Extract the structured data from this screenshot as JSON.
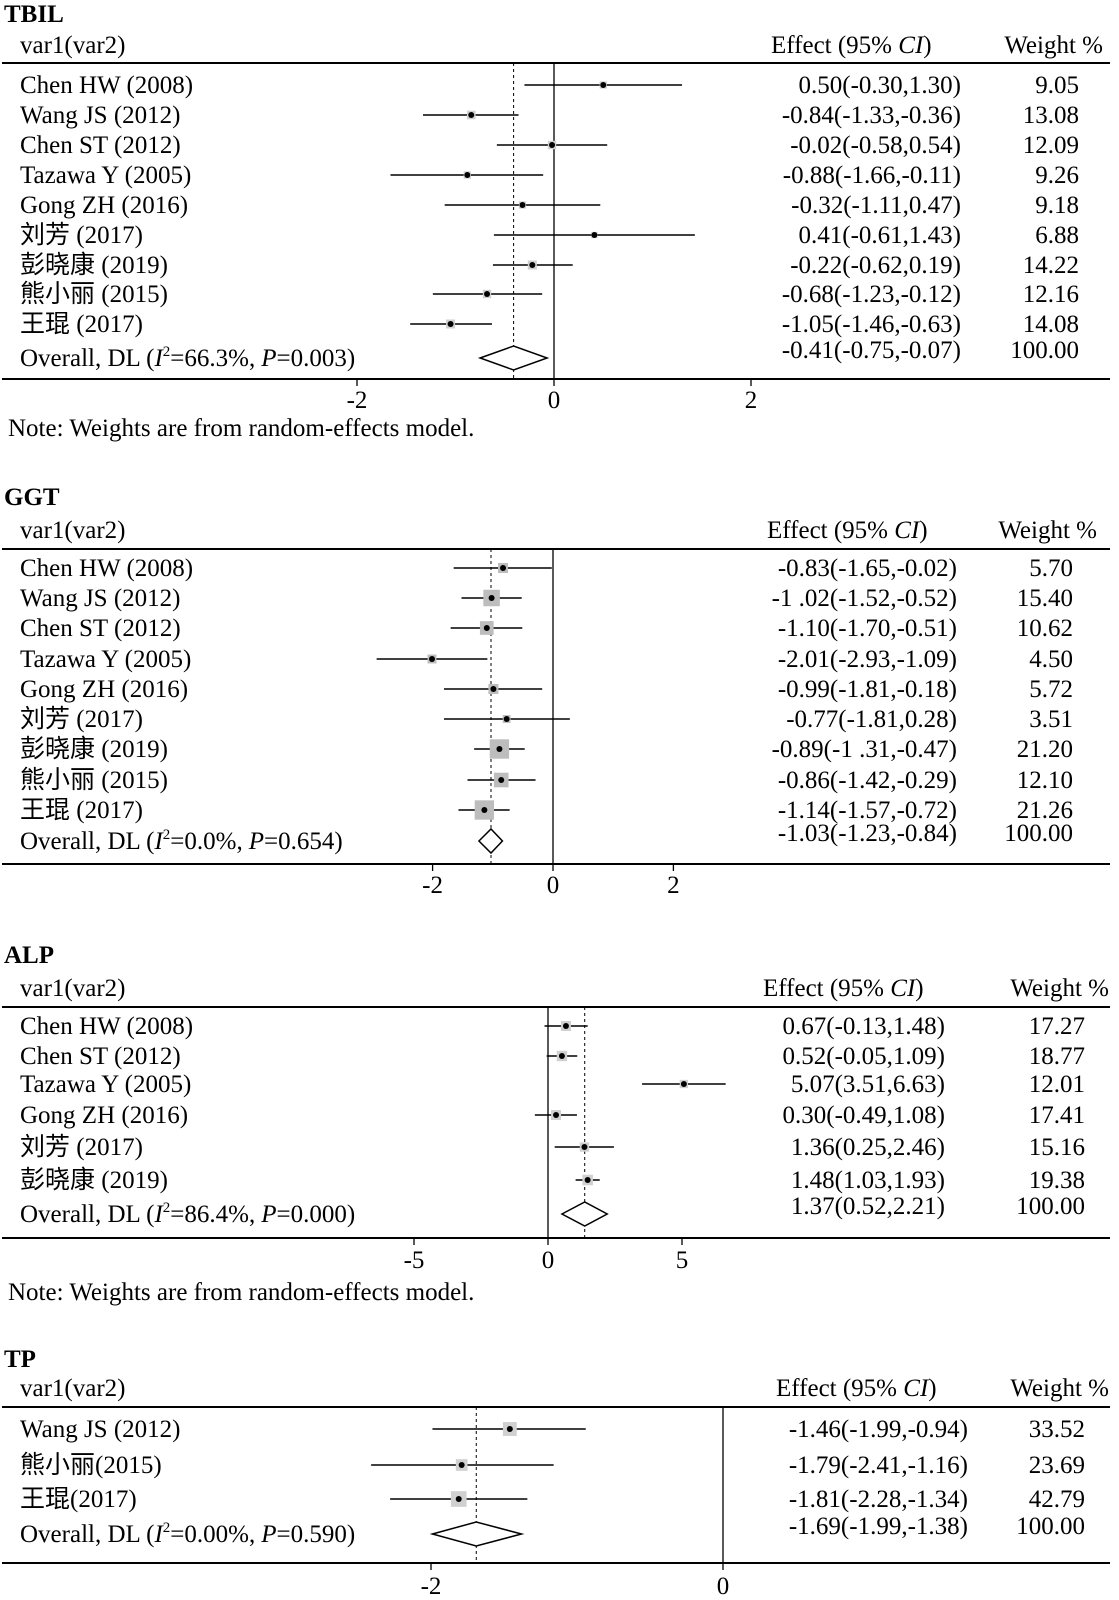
{
  "chart_data": [
    {
      "type": "forest",
      "title": "TBIL",
      "col_study": "var1(var2)",
      "col_effect": "Effect (95% CI)",
      "col_weight": "Weight %",
      "studies": [
        {
          "label": "Chen HW (2008)",
          "effect": 0.5,
          "lo": -0.3,
          "hi": 1.3,
          "effect_text": "0.50(-0.30,1.30)",
          "weight": "9.05"
        },
        {
          "label": "Wang JS (2012)",
          "effect": -0.84,
          "lo": -1.33,
          "hi": -0.36,
          "effect_text": "-0.84(-1.33,-0.36)",
          "weight": "13.08"
        },
        {
          "label": "Chen ST (2012)",
          "effect": -0.02,
          "lo": -0.58,
          "hi": 0.54,
          "effect_text": "-0.02(-0.58,0.54)",
          "weight": "12.09"
        },
        {
          "label": "Tazawa Y (2005)",
          "effect": -0.88,
          "lo": -1.66,
          "hi": -0.11,
          "effect_text": "-0.88(-1.66,-0.11)",
          "weight": "9.26"
        },
        {
          "label": "Gong ZH (2016)",
          "effect": -0.32,
          "lo": -1.11,
          "hi": 0.47,
          "effect_text": "-0.32(-1.11,0.47)",
          "weight": "9.18"
        },
        {
          "label": "刘芳 (2017)",
          "effect": 0.41,
          "lo": -0.61,
          "hi": 1.43,
          "effect_text": "0.41(-0.61,1.43)",
          "weight": "6.88"
        },
        {
          "label": "彭晓康 (2019)",
          "effect": -0.22,
          "lo": -0.62,
          "hi": 0.19,
          "effect_text": "-0.22(-0.62,0.19)",
          "weight": "14.22"
        },
        {
          "label": "熊小丽 (2015)",
          "effect": -0.68,
          "lo": -1.23,
          "hi": -0.12,
          "effect_text": "-0.68(-1.23,-0.12)",
          "weight": "12.16"
        },
        {
          "label": "王琨 (2017)",
          "effect": -1.05,
          "lo": -1.46,
          "hi": -0.63,
          "effect_text": "-1.05(-1.46,-0.63)",
          "weight": "14.08"
        }
      ],
      "overall": {
        "prefix": "Overall, DL (",
        "i2_symbol": "I",
        "i2_sup": "2",
        "i2_value": "=66.3%,",
        "p_symbol": "P",
        "p_value": "=0.003)",
        "effect": -0.41,
        "lo": -0.75,
        "hi": -0.07,
        "effect_text": "-0.41(-0.75,-0.07)",
        "weight": "100.00"
      },
      "x_ticks": [
        -2,
        0,
        2
      ],
      "note": "Note: Weights are from random-effects model."
    },
    {
      "type": "forest",
      "title": "GGT",
      "col_study": "var1(var2)",
      "col_effect": "Effect (95% CI)",
      "col_weight": "Weight %",
      "studies": [
        {
          "label": "Chen HW (2008)",
          "effect": -0.83,
          "lo": -1.65,
          "hi": -0.02,
          "effect_text": "-0.83(-1.65,-0.02)",
          "weight": "5.70"
        },
        {
          "label": "Wang JS (2012)",
          "effect": -1.02,
          "lo": -1.52,
          "hi": -0.52,
          "effect_text": "-1 .02(-1.52,-0.52)",
          "weight": "15.40"
        },
        {
          "label": "Chen ST (2012)",
          "effect": -1.1,
          "lo": -1.7,
          "hi": -0.51,
          "effect_text": "-1.10(-1.70,-0.51)",
          "weight": "10.62"
        },
        {
          "label": "Tazawa Y (2005)",
          "effect": -2.01,
          "lo": -2.93,
          "hi": -1.09,
          "effect_text": "-2.01(-2.93,-1.09)",
          "weight": "4.50"
        },
        {
          "label": "Gong ZH (2016)",
          "effect": -0.99,
          "lo": -1.81,
          "hi": -0.18,
          "effect_text": "-0.99(-1.81,-0.18)",
          "weight": "5.72"
        },
        {
          "label": "刘芳 (2017)",
          "effect": -0.77,
          "lo": -1.81,
          "hi": 0.28,
          "effect_text": "-0.77(-1.81,0.28)",
          "weight": "3.51"
        },
        {
          "label": "彭晓康 (2019)",
          "effect": -0.89,
          "lo": -1.31,
          "hi": -0.47,
          "effect_text": "-0.89(-1 .31,-0.47)",
          "weight": "21.20"
        },
        {
          "label": "熊小丽 (2015)",
          "effect": -0.86,
          "lo": -1.42,
          "hi": -0.29,
          "effect_text": "-0.86(-1.42,-0.29)",
          "weight": "12.10"
        },
        {
          "label": "王琨 (2017)",
          "effect": -1.14,
          "lo": -1.57,
          "hi": -0.72,
          "effect_text": "-1.14(-1.57,-0.72)",
          "weight": "21.26"
        }
      ],
      "overall": {
        "prefix": "Overall, DL (",
        "i2_symbol": "I",
        "i2_sup": "2",
        "i2_value": "=0.0%,",
        "p_symbol": "P",
        "p_value": "=0.654)",
        "effect": -1.03,
        "lo": -1.23,
        "hi": -0.84,
        "effect_text": "-1.03(-1.23,-0.84)",
        "weight": "100.00"
      },
      "x_ticks": [
        -2,
        0,
        2
      ],
      "note": ""
    },
    {
      "type": "forest",
      "title": "ALP",
      "col_study": "var1(var2)",
      "col_effect": "Effect (95% CI)",
      "col_weight": "Weight %",
      "studies": [
        {
          "label": "Chen HW (2008)",
          "effect": 0.67,
          "lo": -0.13,
          "hi": 1.48,
          "effect_text": "0.67(-0.13,1.48)",
          "weight": "17.27"
        },
        {
          "label": "Chen ST (2012)",
          "effect": 0.52,
          "lo": -0.05,
          "hi": 1.09,
          "effect_text": "0.52(-0.05,1.09)",
          "weight": "18.77"
        },
        {
          "label": "Tazawa Y (2005)",
          "effect": 5.07,
          "lo": 3.51,
          "hi": 6.63,
          "effect_text": "5.07(3.51,6.63)",
          "weight": "12.01"
        },
        {
          "label": "Gong ZH (2016)",
          "effect": 0.3,
          "lo": -0.49,
          "hi": 1.08,
          "effect_text": "0.30(-0.49,1.08)",
          "weight": "17.41"
        },
        {
          "label": "刘芳 (2017)",
          "effect": 1.36,
          "lo": 0.25,
          "hi": 2.46,
          "effect_text": "1.36(0.25,2.46)",
          "weight": "15.16"
        },
        {
          "label": "彭晓康 (2019)",
          "effect": 1.48,
          "lo": 1.03,
          "hi": 1.93,
          "effect_text": "1.48(1.03,1.93)",
          "weight": "19.38"
        }
      ],
      "overall": {
        "prefix": "Overall, DL (",
        "i2_symbol": "I",
        "i2_sup": "2",
        "i2_value": "=86.4%,",
        "p_symbol": "P",
        "p_value": "=0.000)",
        "effect": 1.37,
        "lo": 0.52,
        "hi": 2.21,
        "effect_text": "1.37(0.52,2.21)",
        "weight": "100.00"
      },
      "x_ticks": [
        -5,
        0,
        5
      ],
      "note": "Note: Weights are from random-effects model."
    },
    {
      "type": "forest",
      "title": "TP",
      "col_study": "var1(var2)",
      "col_effect": "Effect (95% CI)",
      "col_weight": "Weight %",
      "studies": [
        {
          "label": "Wang JS (2012)",
          "effect": -1.46,
          "lo": -1.99,
          "hi": -0.94,
          "effect_text": "-1.46(-1.99,-0.94)",
          "weight": "33.52"
        },
        {
          "label": "熊小丽(2015)",
          "effect": -1.79,
          "lo": -2.41,
          "hi": -1.16,
          "effect_text": "-1.79(-2.41,-1.16)",
          "weight": "23.69"
        },
        {
          "label": "王琨(2017)",
          "effect": -1.81,
          "lo": -2.28,
          "hi": -1.34,
          "effect_text": "-1.81(-2.28,-1.34)",
          "weight": "42.79"
        }
      ],
      "overall": {
        "prefix": "Overall, DL (",
        "i2_symbol": "I",
        "i2_sup": "2",
        "i2_value": "=0.00%,",
        "p_symbol": "P",
        "p_value": "=0.590)",
        "effect": -1.69,
        "lo": -1.99,
        "hi": -1.38,
        "effect_text": "-1.69(-1.99,-1.38)",
        "weight": "100.00"
      },
      "x_ticks": [
        -2,
        0
      ],
      "note": ""
    }
  ]
}
